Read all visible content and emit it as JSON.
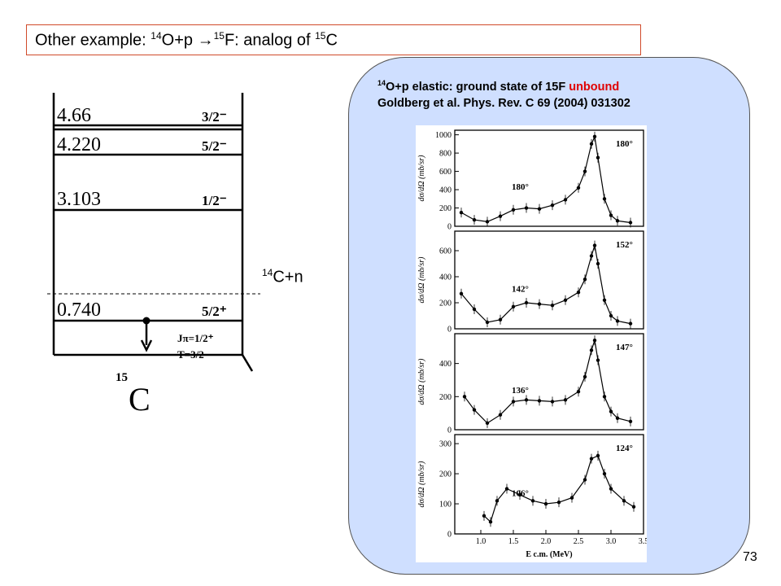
{
  "slide": {
    "title_prefix": "Other example: ",
    "title_sup1": "14",
    "title_mid": "O+p ",
    "title_arrow": "→",
    "title_sup2": "15",
    "title_mid2": "F: analog of ",
    "title_sup3": "15",
    "title_end": "C",
    "page_number": "73"
  },
  "panel": {
    "line1_sup": "14",
    "line1_main": "O+p elastic: ground state of 15F ",
    "line1_red": "unbound",
    "line2": "Goldberg et al. Phys. Rev. C 69 (2004) 031302"
  },
  "level_scheme": {
    "levels": [
      {
        "energy": "4.66",
        "jp": "3/2⁻"
      },
      {
        "energy": "4.220",
        "jp": "5/2⁻"
      },
      {
        "energy": "3.103",
        "jp": "1/2⁻"
      },
      {
        "energy": "0.740",
        "jp": "5/2⁺"
      }
    ],
    "ground_jp": "Jπ=1/2⁺",
    "ground_t": "T=3/2",
    "nucleus_mass": "15",
    "nucleus_symbol": "C",
    "threshold_sup": "14",
    "threshold_label": "C+n"
  },
  "chart_data": [
    {
      "type": "scatter",
      "ylabel": "dσ/dΩ (mb/sr)",
      "ylim": [
        0,
        1050
      ],
      "yticks": [
        "0",
        "200",
        "400",
        "600",
        "800",
        "1000"
      ],
      "annotations": [
        "180°",
        "180°"
      ],
      "x": [
        0.7,
        0.9,
        1.1,
        1.3,
        1.5,
        1.7,
        1.9,
        2.1,
        2.3,
        2.5,
        2.6,
        2.7,
        2.75,
        2.8,
        2.9,
        3.0,
        3.1,
        3.3
      ],
      "series": [
        {
          "values": [
            150,
            70,
            50,
            110,
            180,
            200,
            190,
            230,
            290,
            420,
            600,
            900,
            980,
            750,
            300,
            120,
            60,
            40
          ]
        }
      ]
    },
    {
      "type": "scatter",
      "ylabel": "dσ/dΩ (mb/sr)",
      "ylim": [
        0,
        750
      ],
      "yticks": [
        "0",
        "200",
        "400",
        "600"
      ],
      "annotations": [
        "152°",
        "142°"
      ],
      "x": [
        0.7,
        0.9,
        1.1,
        1.3,
        1.5,
        1.7,
        1.9,
        2.1,
        2.3,
        2.5,
        2.6,
        2.7,
        2.75,
        2.8,
        2.9,
        3.0,
        3.1,
        3.3
      ],
      "series": [
        {
          "values": [
            270,
            150,
            50,
            70,
            170,
            200,
            190,
            180,
            220,
            280,
            380,
            560,
            640,
            500,
            220,
            100,
            60,
            40
          ]
        }
      ]
    },
    {
      "type": "scatter",
      "ylabel": "dσ/dΩ (mb/sr)",
      "ylim": [
        0,
        580
      ],
      "yticks": [
        "0",
        "200",
        "400"
      ],
      "annotations": [
        "147°",
        "136°"
      ],
      "x": [
        0.75,
        0.9,
        1.1,
        1.3,
        1.5,
        1.7,
        1.9,
        2.1,
        2.3,
        2.5,
        2.6,
        2.7,
        2.75,
        2.8,
        2.9,
        3.0,
        3.1,
        3.3
      ],
      "series": [
        {
          "values": [
            200,
            120,
            40,
            90,
            170,
            180,
            175,
            170,
            180,
            230,
            320,
            480,
            540,
            420,
            200,
            110,
            70,
            50
          ]
        }
      ]
    },
    {
      "type": "scatter",
      "ylabel": "dσ/dΩ (mb/sr)",
      "xlabel": "E c.m. (MeV)",
      "ylim": [
        0,
        330
      ],
      "xlim": [
        0.6,
        3.5
      ],
      "xticks": [
        "1.0",
        "1.5",
        "2.0",
        "2.5",
        "3.0",
        "3.5"
      ],
      "yticks": [
        "0",
        "100",
        "200",
        "300"
      ],
      "annotations": [
        "124°",
        "106°"
      ],
      "x": [
        1.05,
        1.15,
        1.25,
        1.4,
        1.6,
        1.8,
        2.0,
        2.2,
        2.4,
        2.6,
        2.7,
        2.8,
        2.9,
        3.0,
        3.2,
        3.35
      ],
      "series": [
        {
          "values": [
            60,
            40,
            110,
            150,
            130,
            110,
            100,
            105,
            120,
            180,
            250,
            260,
            200,
            150,
            110,
            90
          ]
        }
      ]
    }
  ]
}
